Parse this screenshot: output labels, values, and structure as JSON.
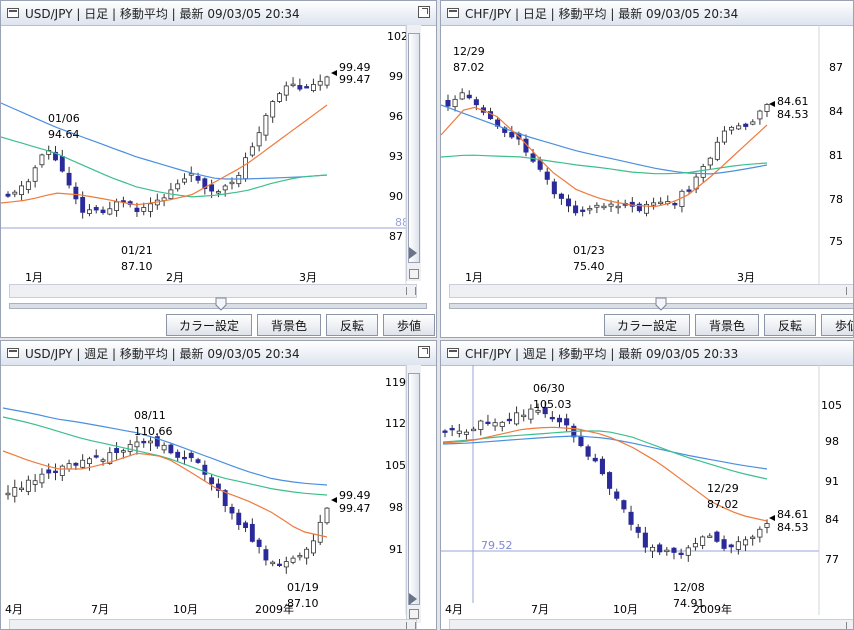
{
  "colors": {
    "ma_short": "#f07a3c",
    "ma_mid": "#3cbf8c",
    "ma_long": "#4a8fe0",
    "bull_candle": "#ffffff",
    "bear_candle": "#2a2a9a",
    "price_line": "#8890d0"
  },
  "panels": [
    {
      "title": "USD/JPY | 日足 | 移動平均 | 最新 09/03/05 20:34",
      "ylabels": [
        "102",
        "99",
        "96",
        "93",
        "90",
        "87"
      ],
      "xlabels": [
        "1月",
        "2月",
        "3月"
      ],
      "ann_high_date": "01/06",
      "ann_high_val": "94.64",
      "ann_low_date": "01/21",
      "ann_low_val": "87.10",
      "last_high": "99.49",
      "last_low": "99.47",
      "hline_label": "88"
    },
    {
      "title": "CHF/JPY | 日足 | 移動平均 | 最新 09/03/05 20:34",
      "ylabels": [
        "87",
        "84",
        "81",
        "78",
        "75"
      ],
      "xlabels": [
        "1月",
        "2月",
        "3月"
      ],
      "ann_high_date": "12/29",
      "ann_high_val": "87.02",
      "ann_low_date": "01/23",
      "ann_low_val": "75.40",
      "last_high": "84.61",
      "last_low": "84.53"
    },
    {
      "title": "USD/JPY | 週足 | 移動平均 | 最新 09/03/05 20:34",
      "ylabels": [
        "119",
        "112",
        "105",
        "98",
        "91"
      ],
      "xlabels": [
        "4月",
        "7月",
        "10月",
        "2009年"
      ],
      "ann_high_date": "08/11",
      "ann_high_val": "110.66",
      "ann_low_date": "01/19",
      "ann_low_val": "87.10",
      "last_high": "99.49",
      "last_low": "99.47"
    },
    {
      "title": "CHF/JPY | 週足 | 移動平均 | 最新 09/03/05 20:33",
      "ylabels": [
        "105",
        "98",
        "91",
        "84",
        "77"
      ],
      "xlabels": [
        "4月",
        "7月",
        "10月",
        "2009年"
      ],
      "ann_high_date": "06/30",
      "ann_high_val": "105.03",
      "ann_mid_date": "12/29",
      "ann_mid_val": "87.02",
      "ann_low_date": "12/08",
      "ann_low_val": "74.91",
      "last_high": "84.61",
      "last_low": "84.53",
      "hline_label": "79.52"
    }
  ],
  "toolbar": {
    "color_setting": "カラー設定",
    "background": "背景色",
    "invert": "反転",
    "step": "歩値"
  }
}
